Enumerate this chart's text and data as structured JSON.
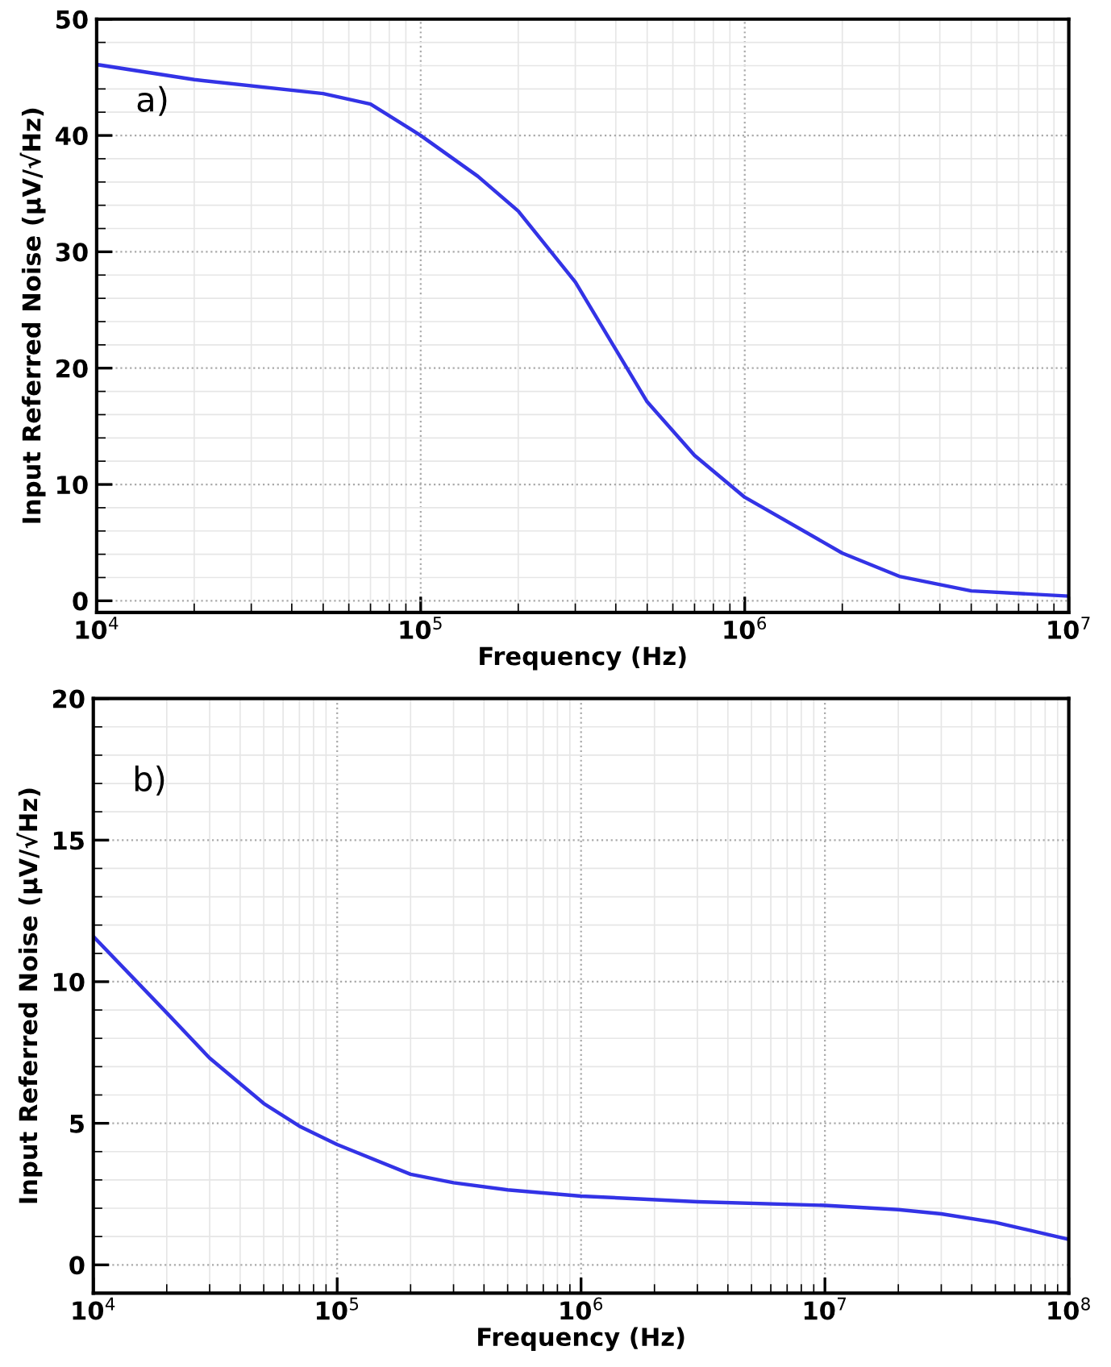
{
  "chart_data": [
    {
      "type": "line",
      "xlabel": "Frequency (Hz)",
      "ylabel": "Input Referred Noise (µV/√Hz)",
      "annotations": [
        "a)"
      ],
      "log": "x",
      "grid": true,
      "xlim": [
        10000,
        10000000
      ],
      "ylim": [
        -1,
        50
      ],
      "xticks": [
        {
          "value": 10000,
          "label": "10$^{4}$"
        },
        {
          "value": 100000,
          "label": "10$^{5}$"
        },
        {
          "value": 1000000,
          "label": "10$^{6}$"
        },
        {
          "value": 10000000,
          "label": "10$^{7}$"
        }
      ],
      "yticks": [
        0,
        10,
        20,
        30,
        40,
        50
      ],
      "series": [
        {
          "color": "#3333e6",
          "x": [
            10000,
            20000,
            50000,
            70000,
            100000,
            150000,
            200000,
            300000,
            400000,
            500000,
            700000,
            1000000,
            2000000,
            3000000,
            5000000,
            10000000
          ],
          "values": [
            46.1,
            44.8,
            43.6,
            42.7,
            40.0,
            36.5,
            33.5,
            27.4,
            21.6,
            17.1,
            12.5,
            8.9,
            4.1,
            2.1,
            0.85,
            0.4
          ]
        }
      ]
    },
    {
      "type": "line",
      "xlabel": "Frequency (Hz)",
      "ylabel": "Input Referred Noise (µV/√Hz)",
      "annotations": [
        "b)"
      ],
      "log": "x",
      "grid": true,
      "xlim": [
        10000,
        100000000
      ],
      "ylim": [
        -1,
        20
      ],
      "xticks": [
        {
          "value": 10000,
          "label": "10$^{4}$"
        },
        {
          "value": 100000,
          "label": "10$^{5}$"
        },
        {
          "value": 1000000,
          "label": "10$^{6}$"
        },
        {
          "value": 10000000,
          "label": "10$^{7}$"
        },
        {
          "value": 100000000,
          "label": "10$^{8}$"
        }
      ],
      "yticks": [
        0,
        5,
        10,
        15,
        20
      ],
      "series": [
        {
          "color": "#3333e6",
          "x": [
            10000,
            20000,
            30000,
            50000,
            70000,
            100000,
            200000,
            300000,
            500000,
            1000000,
            3000000,
            10000000,
            20000000,
            30000000,
            50000000,
            100000000
          ],
          "values": [
            11.6,
            8.9,
            7.3,
            5.7,
            4.9,
            4.25,
            3.2,
            2.9,
            2.65,
            2.43,
            2.23,
            2.1,
            1.95,
            1.8,
            1.5,
            0.9
          ]
        }
      ]
    }
  ]
}
